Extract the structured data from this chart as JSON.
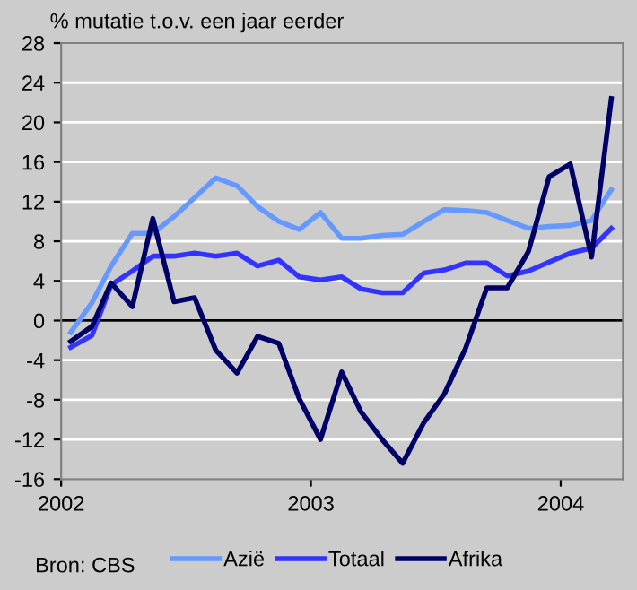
{
  "chart_data": {
    "type": "line",
    "title": "% mutatie t.o.v. een jaar eerder",
    "x": [
      "2002-01-15",
      "2002-02-15",
      "2002-03-15",
      "2002-04-15",
      "2002-05-15",
      "2002-06-15",
      "2002-07-15",
      "2002-08-15",
      "2002-09-15",
      "2002-10-15",
      "2002-11-15",
      "2002-12-15",
      "2003-01-15",
      "2003-02-15",
      "2003-03-15",
      "2003-04-15",
      "2003-05-15",
      "2003-06-15",
      "2003-07-15",
      "2003-08-15",
      "2003-09-15",
      "2003-10-15",
      "2003-11-15",
      "2003-12-15",
      "2004-01-15",
      "2004-02-15",
      "2004-03-15"
    ],
    "series": [
      {
        "name": "Azië",
        "color": "#6699ff",
        "values": [
          -1.2,
          1.8,
          5.5,
          8.8,
          8.8,
          10.5,
          12.4,
          14.4,
          13.6,
          11.5,
          10.0,
          9.2,
          10.9,
          8.3,
          8.3,
          8.6,
          8.7,
          10.0,
          11.2,
          11.1,
          10.9,
          10.1,
          9.3,
          9.5,
          9.6,
          10.1,
          13.2
        ]
      },
      {
        "name": "Totaal",
        "color": "#3333ff",
        "values": [
          -2.7,
          -1.5,
          3.6,
          5.0,
          6.5,
          6.5,
          6.8,
          6.5,
          6.8,
          5.5,
          6.1,
          4.4,
          4.1,
          4.4,
          3.2,
          2.8,
          2.8,
          4.8,
          5.1,
          5.8,
          5.8,
          4.5,
          5.0,
          5.9,
          6.8,
          7.3,
          9.3
        ]
      },
      {
        "name": "Afrika",
        "color": "#000066",
        "values": [
          -2.1,
          -0.6,
          3.8,
          1.4,
          10.3,
          1.9,
          2.3,
          -3.0,
          -5.3,
          -1.6,
          -2.3,
          -7.9,
          -12.0,
          -5.2,
          -9.2,
          -12.0,
          -14.4,
          -10.3,
          -7.4,
          -2.8,
          3.3,
          3.3,
          7.0,
          14.5,
          15.8,
          6.4,
          22.4
        ]
      }
    ],
    "xlim": [
      "2002-01-01",
      "2004-04-01"
    ],
    "xticks": [
      {
        "value": "2002-01-01",
        "label": "2002"
      },
      {
        "value": "2003-01-01",
        "label": "2003"
      },
      {
        "value": "2004-01-01",
        "label": "2004"
      }
    ],
    "ylim": [
      -16,
      28
    ],
    "yticks": [
      -16,
      -12,
      -8,
      -4,
      0,
      4,
      8,
      12,
      16,
      20,
      24,
      28
    ],
    "ref_lines": [
      {
        "axis": "y",
        "value": 0,
        "color": "#000000"
      }
    ],
    "grid": "y",
    "legend": "bottom",
    "marker": "none",
    "line_style": "solid",
    "annotations": [
      "Bron: CBS"
    ]
  }
}
